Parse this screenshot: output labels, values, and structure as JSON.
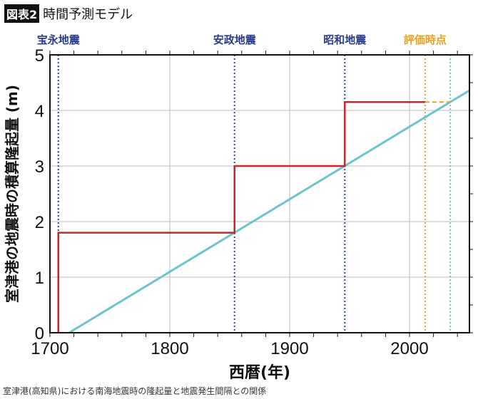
{
  "header": {
    "badge": "図表2",
    "title": "時間予測モデル"
  },
  "caption": "室津港(高知県)における南海地震時の隆起量と地震発生間隔との関係",
  "chart_data": {
    "type": "line",
    "xlabel": "西暦(年)",
    "ylabel": "室津港の地震時の積算隆起量 (m)",
    "xlim": [
      1700,
      2050
    ],
    "ylim": [
      0,
      5
    ],
    "xticks": [
      1700,
      1800,
      1900,
      2000
    ],
    "yticks": [
      0,
      1,
      2,
      3,
      4,
      5
    ],
    "grid": true,
    "events": [
      {
        "label": "宝永地震",
        "year": 1707,
        "color": "#2a3a8c"
      },
      {
        "label": "安政地震",
        "year": 1854,
        "color": "#2a3a8c"
      },
      {
        "label": "昭和地震",
        "year": 1946,
        "color": "#2a3a8c"
      },
      {
        "label": "評価時点",
        "year": 2013,
        "color": "#e8a020"
      }
    ],
    "predicted_year": 2034,
    "step_series": {
      "color": "#c0282d",
      "points": [
        [
          1707,
          0
        ],
        [
          1707,
          1.8
        ],
        [
          1854,
          1.8
        ],
        [
          1854,
          3.0
        ],
        [
          1946,
          3.0
        ],
        [
          1946,
          4.15
        ],
        [
          2013,
          4.15
        ]
      ]
    },
    "projection": {
      "color": "#e8a020",
      "points": [
        [
          2013,
          4.15
        ],
        [
          2034,
          4.15
        ]
      ]
    },
    "trend_line": {
      "color": "#6cc3cc",
      "points": [
        [
          1716,
          0
        ],
        [
          2050,
          4.36
        ]
      ]
    }
  }
}
